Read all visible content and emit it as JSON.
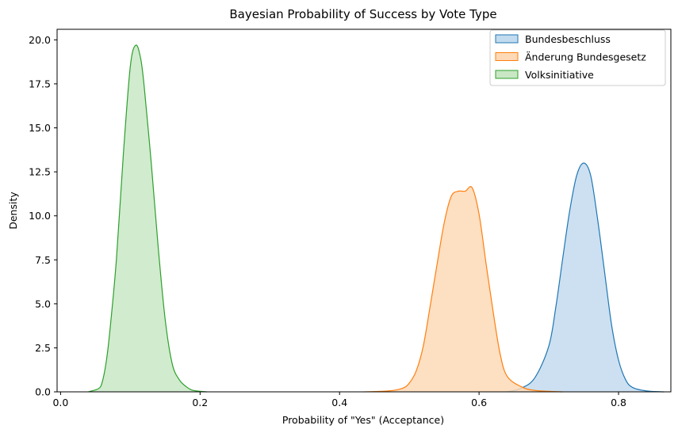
{
  "chart_data": {
    "type": "area",
    "title": "Bayesian Probability of Success by Vote Type",
    "xlabel": "Probability of \"Yes\" (Acceptance)",
    "ylabel": "Density",
    "xlim": [
      -0.005,
      0.875
    ],
    "ylim": [
      0,
      20.6
    ],
    "xticks": [
      0.0,
      0.2,
      0.4,
      0.6,
      0.8
    ],
    "xtick_labels": [
      "0.0",
      "0.2",
      "0.4",
      "0.6",
      "0.8"
    ],
    "yticks": [
      0,
      2.5,
      5,
      7.5,
      10,
      12.5,
      15,
      17.5,
      20
    ],
    "ytick_labels": [
      "0.0",
      "2.5",
      "5.0",
      "7.5",
      "10.0",
      "12.5",
      "15.0",
      "17.5",
      "20.0"
    ],
    "grid": false,
    "legend_position": "top-right",
    "series": [
      {
        "name": "Bundesbeschluss",
        "color": "#1f77b4",
        "fill": "#c3dbee",
        "points": [
          [
            0.64,
            0.0
          ],
          [
            0.66,
            0.2
          ],
          [
            0.68,
            0.8
          ],
          [
            0.7,
            2.6
          ],
          [
            0.71,
            4.8
          ],
          [
            0.72,
            7.6
          ],
          [
            0.73,
            10.3
          ],
          [
            0.74,
            12.3
          ],
          [
            0.75,
            13.0
          ],
          [
            0.76,
            12.3
          ],
          [
            0.77,
            9.8
          ],
          [
            0.78,
            6.8
          ],
          [
            0.79,
            3.8
          ],
          [
            0.8,
            1.8
          ],
          [
            0.81,
            0.7
          ],
          [
            0.82,
            0.25
          ],
          [
            0.84,
            0.05
          ],
          [
            0.865,
            0.0
          ]
        ]
      },
      {
        "name": "Änderung Bundesgesetz",
        "color": "#ff7f0e",
        "fill": "#fdd9b7",
        "points": [
          [
            0.435,
            0.0
          ],
          [
            0.47,
            0.05
          ],
          [
            0.49,
            0.2
          ],
          [
            0.5,
            0.5
          ],
          [
            0.51,
            1.2
          ],
          [
            0.52,
            2.6
          ],
          [
            0.53,
            4.9
          ],
          [
            0.54,
            7.3
          ],
          [
            0.55,
            9.6
          ],
          [
            0.56,
            11.1
          ],
          [
            0.57,
            11.4
          ],
          [
            0.58,
            11.4
          ],
          [
            0.59,
            11.6
          ],
          [
            0.6,
            10.1
          ],
          [
            0.61,
            7.3
          ],
          [
            0.62,
            4.6
          ],
          [
            0.63,
            2.2
          ],
          [
            0.64,
            0.9
          ],
          [
            0.66,
            0.3
          ],
          [
            0.68,
            0.08
          ],
          [
            0.72,
            0.0
          ]
        ]
      },
      {
        "name": "Volksinitiative",
        "color": "#2ca02c",
        "fill": "#c9e7c5",
        "points": [
          [
            0.04,
            0.0
          ],
          [
            0.055,
            0.2
          ],
          [
            0.06,
            0.6
          ],
          [
            0.065,
            1.6
          ],
          [
            0.07,
            3.2
          ],
          [
            0.08,
            7.5
          ],
          [
            0.09,
            13.5
          ],
          [
            0.1,
            18.5
          ],
          [
            0.108,
            19.7
          ],
          [
            0.115,
            18.9
          ],
          [
            0.12,
            17.3
          ],
          [
            0.13,
            13.0
          ],
          [
            0.14,
            8.2
          ],
          [
            0.15,
            4.1
          ],
          [
            0.16,
            1.6
          ],
          [
            0.17,
            0.7
          ],
          [
            0.18,
            0.3
          ],
          [
            0.19,
            0.08
          ],
          [
            0.21,
            0.0
          ]
        ]
      }
    ]
  }
}
